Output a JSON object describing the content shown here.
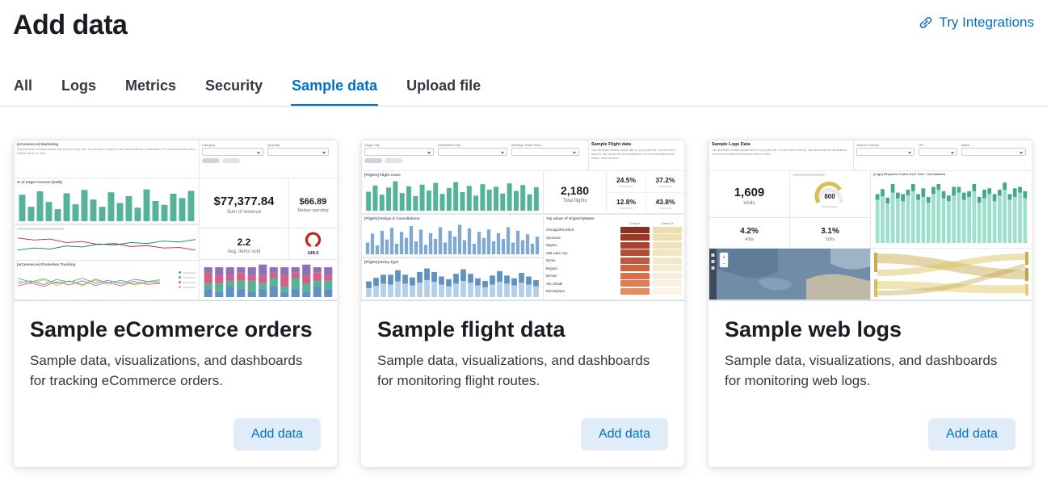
{
  "page": {
    "title": "Add data",
    "integrations_link": "Try Integrations"
  },
  "colors": {
    "accent": "#0071c2",
    "vis_green": "#54b399",
    "vis_blue": "#6092c0",
    "danger_red": "#bd271e",
    "vis_yellow": "#d6bf57"
  },
  "tabs": [
    {
      "label": "All"
    },
    {
      "label": "Logs"
    },
    {
      "label": "Metrics"
    },
    {
      "label": "Security"
    },
    {
      "label": "Sample data"
    },
    {
      "label": "Upload file"
    }
  ],
  "sample_description": "This dashboard contains sample data for you to play with. You can view it, search it, and interact with the visualizations. For more information about Kibana, check our docs.",
  "cards": [
    {
      "title": "Sample eCommerce orders",
      "description": "Sample data, visualizations, and dashboards for tracking eCommerce orders.",
      "button": "Add data",
      "preview": {
        "header": "[eCommerce] Marketing",
        "controls": {
          "labels": [
            "Category",
            "Quantity"
          ]
        },
        "revenue_chart_title": "% of target revenue ($10k)",
        "sum_revenue": {
          "value": "$77,377.84",
          "label": "Sum of revenue"
        },
        "median_spending": {
          "value": "$66.89",
          "label": "Median spending"
        },
        "avg_items": {
          "value": "2.2",
          "label": "Avg. items sold"
        },
        "gauge": {
          "value": "149.0"
        },
        "promo_title": "[eCommerce] Promotion Tracking",
        "charts": {
          "revenue_bars": {
            "type": "bars",
            "color": "#54b399",
            "values": [
              55,
              30,
              62,
              40,
              25,
              58,
              35,
              65,
              45,
              30,
              60,
              38,
              52,
              28,
              66,
              42,
              34,
              57,
              48,
              63
            ]
          },
          "sales_lines": {
            "type": "lines",
            "series": [
              {
                "color": "#bd271e",
                "values": [
                  78,
                  70,
                  74,
                  60,
                  64,
                  52,
                  56,
                  44,
                  48,
                  38,
                  40,
                  30
                ]
              },
              {
                "color": "#017d73",
                "values": [
                  30,
                  38,
                  34,
                  46,
                  42,
                  54,
                  50,
                  60,
                  56,
                  66,
                  62,
                  72
                ]
              }
            ]
          },
          "promo_lines": {
            "type": "lines",
            "series": [
              {
                "color": "#6092c0",
                "values": [
                  50,
                  60,
                  45,
                  65,
                  55,
                  70,
                  50,
                  62,
                  48,
                  66,
                  58,
                  52
                ]
              },
              {
                "color": "#54b399",
                "values": [
                  70,
                  55,
                  68,
                  50,
                  60,
                  45,
                  66,
                  52,
                  62,
                  47,
                  57,
                  64
                ]
              },
              {
                "color": "#d36086",
                "values": [
                  40,
                  52,
                  38,
                  56,
                  44,
                  60,
                  42,
                  54,
                  40,
                  58,
                  46,
                  50
                ]
              },
              {
                "color": "#d6bf57",
                "values": [
                  60,
                  48,
                  64,
                  42,
                  58,
                  40,
                  62,
                  46,
                  56,
                  44,
                  52,
                  60
                ]
              }
            ]
          },
          "category_stacked": {
            "type": "stacked",
            "colors": [
              "#6092c0",
              "#54b399",
              "#d36086",
              "#9170b8"
            ],
            "stacks": [
              [
                3,
                2,
                4,
                2
              ],
              [
                2,
                3,
                3,
                3
              ],
              [
                4,
                2,
                2,
                3
              ],
              [
                3,
                3,
                3,
                2
              ],
              [
                2,
                4,
                2,
                3
              ],
              [
                3,
                2,
                3,
                4
              ],
              [
                4,
                3,
                2,
                2
              ],
              [
                2,
                2,
                4,
                3
              ],
              [
                3,
                4,
                2,
                2
              ],
              [
                2,
                3,
                3,
                4
              ],
              [
                4,
                2,
                3,
                2
              ],
              [
                3,
                3,
                2,
                3
              ]
            ]
          }
        }
      }
    },
    {
      "title": "Sample flight data",
      "description": "Sample data, visualizations, and dashboards for monitoring flight routes.",
      "button": "Add data",
      "preview": {
        "panel_title": "Sample Flight data",
        "control_labels": [
          "Origin City",
          "Destination City",
          "Average Ticket Price"
        ],
        "flight_count_title": "[Flights] Flight count",
        "total_flights": {
          "value": "2,180",
          "label": "Total flights"
        },
        "percentages": [
          {
            "value": "24.5%"
          },
          {
            "value": "37.2%"
          },
          {
            "value": "12.8%"
          },
          {
            "value": "43.8%"
          }
        ],
        "delays_title": "[Flights] Delays & Cancellations",
        "delay_type_title": "[Flights] Delay Type",
        "table": {
          "title": "Top values of OriginCityName",
          "columns": [
            "Delay %",
            "Cancel %"
          ],
          "rows": [
            {
              "city": "Chicago/Rockford",
              "delay": "#8c2f21",
              "cancel": "#ecdcae"
            },
            {
              "city": "Syracuse",
              "delay": "#9c3828",
              "cancel": "#eedfb5"
            },
            {
              "city": "Naples",
              "delay": "#ab422e",
              "cancel": "#f1e2bc"
            },
            {
              "city": "Salt Lake City",
              "delay": "#b84d35",
              "cancel": "#f3e5c3"
            },
            {
              "city": "Rome",
              "delay": "#c4583c",
              "cancel": "#f4e8ca"
            },
            {
              "city": "Bogota",
              "delay": "#cf6443",
              "cancel": "#f6ebd1"
            },
            {
              "city": "Denver",
              "delay": "#d8704b",
              "cancel": "#f8eed8"
            },
            {
              "city": "Abu Dhabi",
              "delay": "#e07d54",
              "cancel": "#f9f1df"
            },
            {
              "city": "Birmingham",
              "delay": "#e88a5e",
              "cancel": "#fbf4e6"
            }
          ]
        },
        "charts": {
          "flight_bars": {
            "type": "bars",
            "color": "#54b399",
            "values": [
              45,
              60,
              38,
              55,
              70,
              42,
              58,
              35,
              62,
              48,
              66,
              40,
              54,
              68,
              44,
              59,
              36,
              63,
              50,
              57,
              41,
              65,
              47,
              61,
              39,
              56
            ]
          },
          "delay_hist": {
            "type": "bars",
            "color": "#7fa8d4",
            "values": [
              20,
              35,
              15,
              40,
              25,
              45,
              18,
              38,
              28,
              48,
              22,
              42,
              16,
              36,
              26,
              46,
              20,
              40,
              30,
              50,
              24,
              44,
              18,
              38,
              28,
              42,
              22,
              36,
              26,
              46,
              20,
              40,
              24,
              34,
              18,
              30
            ]
          },
          "delay_type_stacked": {
            "type": "stacked",
            "colors": [
              "#b5cfe8",
              "#6092c0"
            ],
            "stacks": [
              [
                20,
                15
              ],
              [
                25,
                18
              ],
              [
                30,
                20
              ],
              [
                28,
                22
              ],
              [
                35,
                25
              ],
              [
                30,
                20
              ],
              [
                26,
                18
              ],
              [
                32,
                24
              ],
              [
                38,
                26
              ],
              [
                34,
                22
              ],
              [
                28,
                18
              ],
              [
                24,
                16
              ],
              [
                30,
                22
              ],
              [
                36,
                26
              ],
              [
                32,
                20
              ],
              [
                26,
                16
              ],
              [
                22,
                14
              ],
              [
                28,
                20
              ],
              [
                34,
                24
              ],
              [
                30,
                18
              ],
              [
                26,
                16
              ],
              [
                32,
                22
              ],
              [
                28,
                18
              ],
              [
                24,
                14
              ]
            ]
          }
        }
      }
    },
    {
      "title": "Sample web logs",
      "description": "Sample data, visualizations, and dashboards for monitoring web logs.",
      "button": "Add data",
      "preview": {
        "panel_title": "Sample Logs Data",
        "control_labels": [
          "Source Country",
          "OS",
          "Bytes"
        ],
        "visits": {
          "value": "1,609",
          "label": "Visits"
        },
        "gauge": {
          "value": "800"
        },
        "response_chart_title": "[Logs] Response Codes Over Time + Annotations",
        "errors_400": {
          "value": "4.2%",
          "label": "400s"
        },
        "errors_500": {
          "value": "3.1%",
          "label": "500s"
        },
        "charts": {
          "response_bars": {
            "type": "stacked",
            "colors": [
              "#9fe0cd",
              "#43a88f"
            ],
            "stacks": [
              [
                60,
                8
              ],
              [
                65,
                10
              ],
              [
                55,
                8
              ],
              [
                70,
                12
              ],
              [
                62,
                8
              ],
              [
                58,
                10
              ],
              [
                66,
                8
              ],
              [
                72,
                10
              ],
              [
                60,
                8
              ],
              [
                64,
                12
              ],
              [
                56,
                8
              ],
              [
                68,
                10
              ],
              [
                74,
                8
              ],
              [
                62,
                10
              ],
              [
                58,
                8
              ],
              [
                66,
                12
              ],
              [
                70,
                8
              ],
              [
                60,
                10
              ],
              [
                64,
                8
              ],
              [
                72,
                10
              ],
              [
                56,
                8
              ],
              [
                62,
                12
              ],
              [
                68,
                8
              ],
              [
                58,
                10
              ],
              [
                66,
                8
              ],
              [
                74,
                10
              ],
              [
                60,
                8
              ],
              [
                64,
                12
              ],
              [
                70,
                8
              ],
              [
                62,
                10
              ]
            ]
          }
        }
      }
    }
  ]
}
